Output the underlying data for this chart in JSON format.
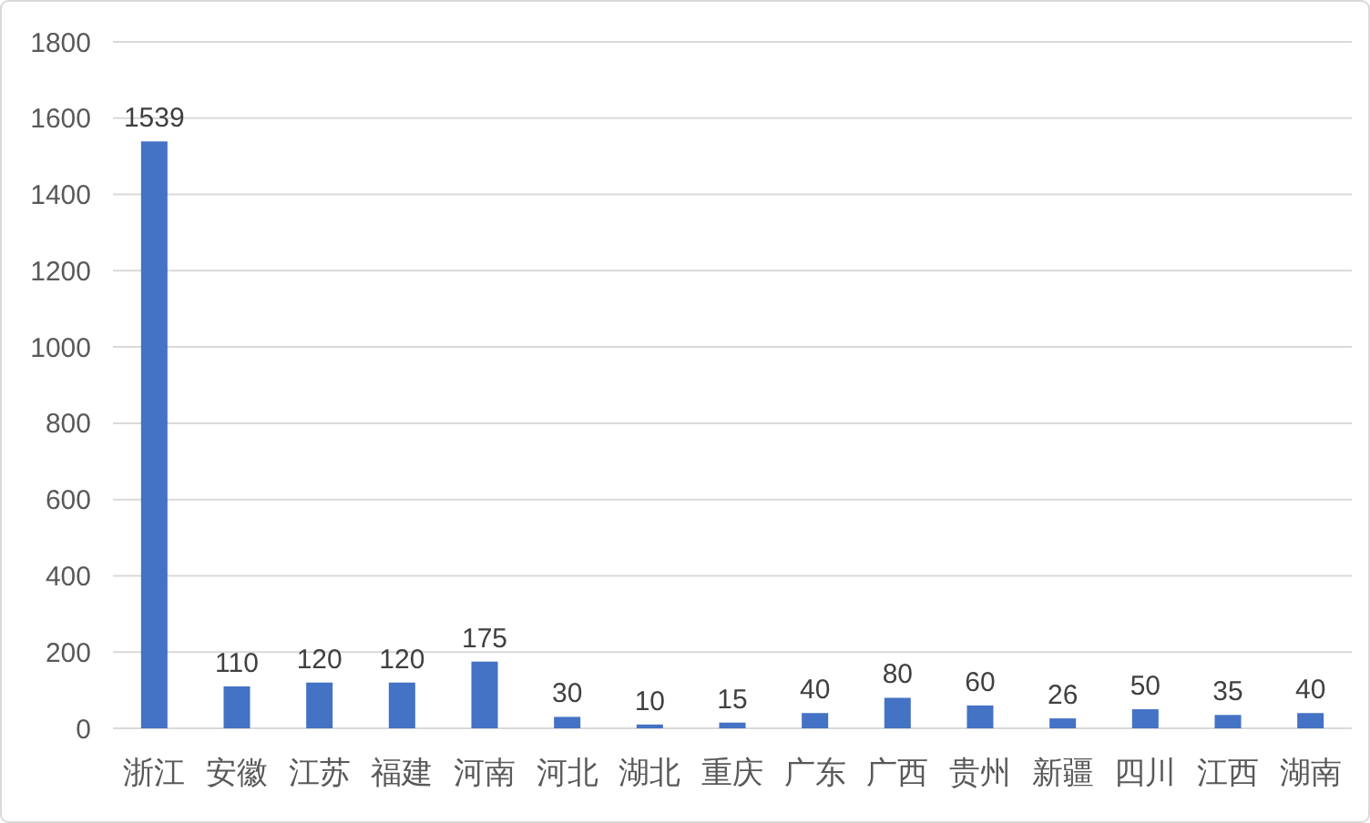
{
  "chart_data": {
    "type": "bar",
    "categories": [
      "浙江",
      "安徽",
      "江苏",
      "福建",
      "河南",
      "河北",
      "湖北",
      "重庆",
      "广东",
      "广西",
      "贵州",
      "新疆",
      "四川",
      "江西",
      "湖南"
    ],
    "values": [
      1539,
      110,
      120,
      120,
      175,
      30,
      10,
      15,
      40,
      80,
      60,
      26,
      50,
      35,
      40
    ],
    "color": "#4472c4",
    "ylim": [
      0,
      1800
    ],
    "yticks": [
      0,
      200,
      400,
      600,
      800,
      1000,
      1200,
      1400,
      1600,
      1800
    ],
    "grid": "y",
    "data_labels": true
  }
}
